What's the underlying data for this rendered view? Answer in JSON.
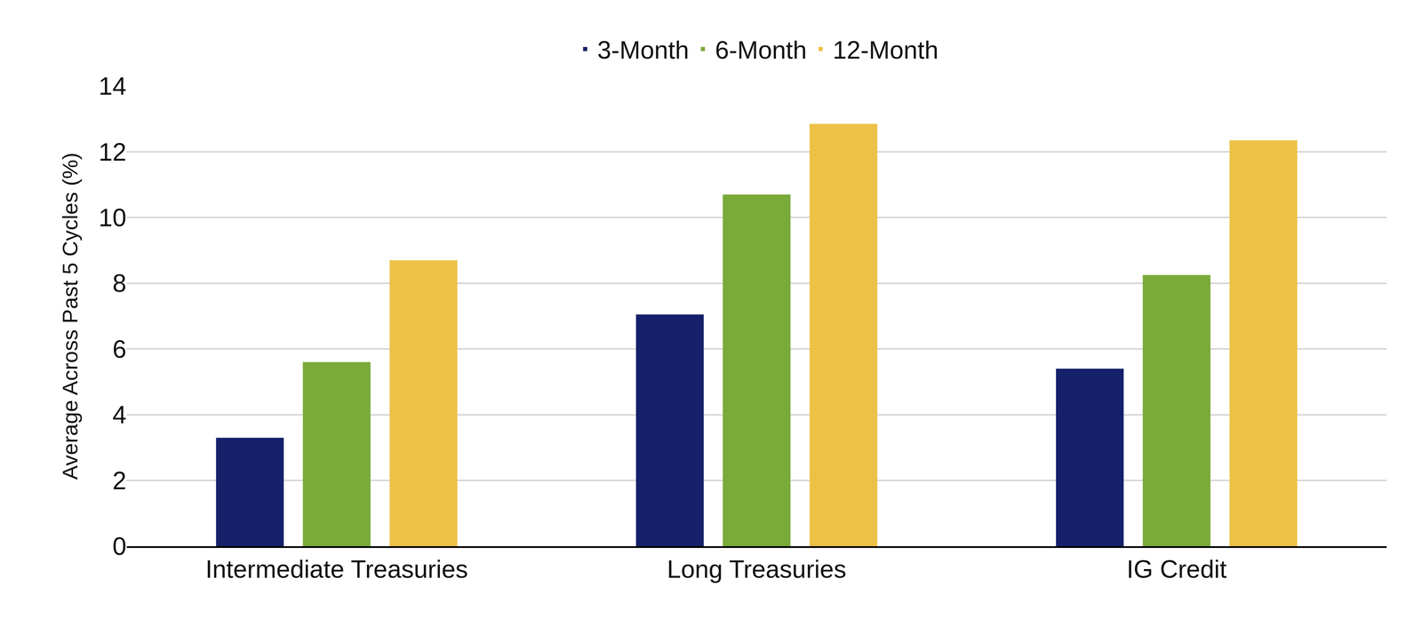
{
  "chart_data": {
    "type": "bar",
    "y_label": "Average Across Past 5 Cycles (%)",
    "categories": [
      "Intermediate Treasuries",
      "Long Treasuries",
      "IG Credit"
    ],
    "series": [
      {
        "name": "3-Month",
        "color": "#15206a",
        "values": [
          3.3,
          7.05,
          5.4
        ]
      },
      {
        "name": "6-Month",
        "color": "#7aaa3a",
        "values": [
          5.6,
          10.7,
          8.25
        ]
      },
      {
        "name": "12-Month",
        "color": "#ecc146",
        "values": [
          8.7,
          12.85,
          12.35
        ]
      }
    ],
    "ylim": [
      0,
      14
    ],
    "yticks": [
      0,
      2,
      4,
      6,
      8,
      10,
      12,
      14
    ],
    "grid": true,
    "legend": "top"
  }
}
